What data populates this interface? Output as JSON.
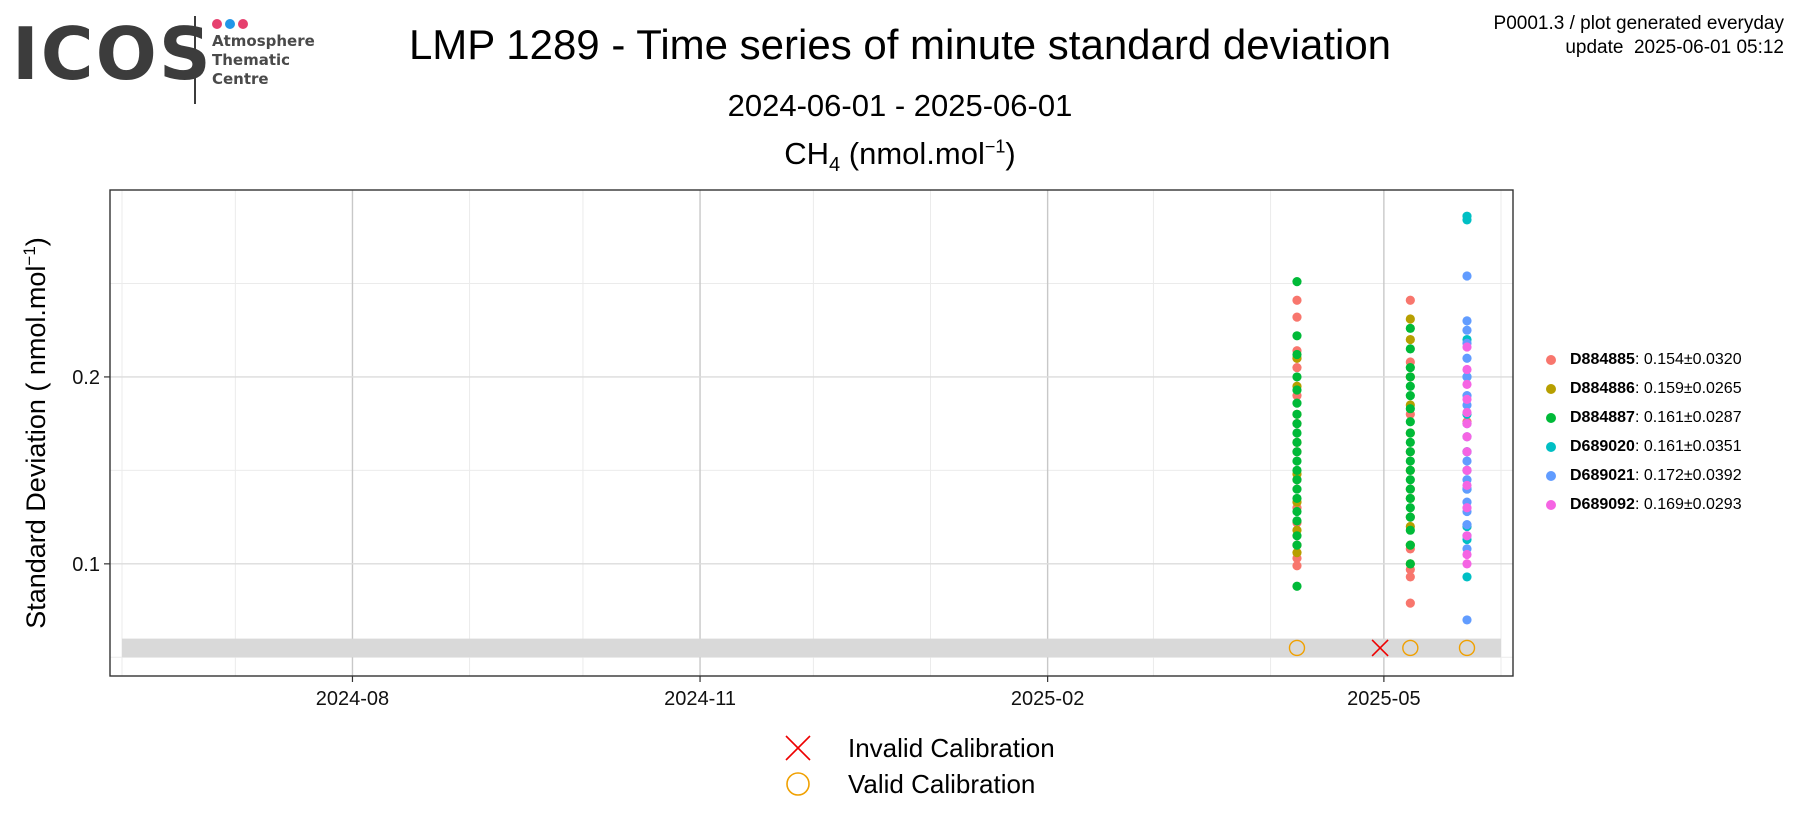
{
  "logo": {
    "wordmark": "ICOS",
    "line1": "Atmosphere",
    "line2": "Thematic",
    "line3": "Centre",
    "dot_colors": [
      "#e6406e",
      "#2196e8",
      "#e6406e"
    ]
  },
  "header": {
    "title": "LMP 1289 - Time series of minute standard deviation",
    "subtitle": "2024-06-01 - 2025-06-01",
    "species_prefix": "CH",
    "species_sub": "4",
    "species_unit": " (nmol.mol",
    "species_sup": "−1",
    "species_close": ")"
  },
  "meta": {
    "line1": "P0001.3 / plot generated everyday",
    "line2": "update  2025-06-01 05:12"
  },
  "chart_data": {
    "type": "scatter",
    "ylabel": "Standard Deviation ( nmol.mol",
    "ylabel_sup": "−1",
    "ylabel_close": ")",
    "xlim": [
      "2024-06-01",
      "2025-06-01"
    ],
    "ylim": [
      0.04,
      0.3
    ],
    "x_ticks": [
      "2024-08-01",
      "2024-11-01",
      "2025-02-01",
      "2025-05-01"
    ],
    "x_tick_labels": [
      "2024-08",
      "2024-11",
      "2025-02",
      "2025-05"
    ],
    "y_ticks": [
      0.1,
      0.2
    ],
    "y_tick_labels": [
      "0.1",
      "0.2"
    ],
    "grid": true,
    "legend_position": "right",
    "series": [
      {
        "name": "D884885",
        "stats": ": 0.154±0.0320",
        "color": "#F8766D",
        "points": [
          {
            "x": "2025-04-08",
            "ys": [
              0.241,
              0.232,
              0.214,
              0.21,
              0.205,
              0.19,
              0.175,
              0.16,
              0.145,
              0.13,
              0.122,
              0.11,
              0.103,
              0.099
            ]
          },
          {
            "x": "2025-05-08",
            "ys": [
              0.241,
              0.208,
              0.2,
              0.18,
              0.16,
              0.14,
              0.125,
              0.108,
              0.097,
              0.093,
              0.079
            ]
          },
          {
            "x": "2025-05-23",
            "ys": [
              0.176,
              0.15,
              0.12
            ]
          }
        ]
      },
      {
        "name": "D884886",
        "stats": ": 0.159±0.0265",
        "color": "#B79F00",
        "points": [
          {
            "x": "2025-04-08",
            "ys": [
              0.21,
              0.195,
              0.18,
              0.165,
              0.148,
              0.133,
              0.118,
              0.106
            ]
          },
          {
            "x": "2025-05-08",
            "ys": [
              0.231,
              0.22,
              0.2,
              0.185,
              0.17,
              0.15,
              0.135,
              0.12,
              0.11,
              0.1
            ]
          }
        ]
      },
      {
        "name": "D884887",
        "stats": ": 0.161±0.0287",
        "color": "#00BA38",
        "points": [
          {
            "x": "2025-04-08",
            "ys": [
              0.251,
              0.222,
              0.212,
              0.2,
              0.193,
              0.186,
              0.18,
              0.175,
              0.17,
              0.165,
              0.16,
              0.155,
              0.15,
              0.145,
              0.14,
              0.135,
              0.128,
              0.123,
              0.115,
              0.11,
              0.088
            ]
          },
          {
            "x": "2025-05-08",
            "ys": [
              0.226,
              0.215,
              0.205,
              0.2,
              0.195,
              0.19,
              0.183,
              0.176,
              0.17,
              0.165,
              0.16,
              0.155,
              0.15,
              0.145,
              0.14,
              0.135,
              0.13,
              0.125,
              0.118,
              0.11,
              0.1
            ]
          }
        ]
      },
      {
        "name": "D689020",
        "stats": ": 0.161±0.0351",
        "color": "#00BFC4",
        "points": [
          {
            "x": "2025-05-23",
            "ys": [
              0.286,
              0.284,
              0.22,
              0.2,
              0.18,
              0.16,
              0.14,
              0.12,
              0.113,
              0.093
            ]
          }
        ]
      },
      {
        "name": "D689021",
        "stats": ": 0.172±0.0392",
        "color": "#619CFF",
        "points": [
          {
            "x": "2025-05-23",
            "ys": [
              0.254,
              0.23,
              0.225,
              0.218,
              0.21,
              0.2,
              0.19,
              0.185,
              0.175,
              0.168,
              0.16,
              0.155,
              0.15,
              0.145,
              0.14,
              0.133,
              0.128,
              0.121,
              0.115,
              0.108,
              0.07
            ]
          }
        ]
      },
      {
        "name": "D689092",
        "stats": ": 0.169±0.0293",
        "color": "#F564E3",
        "points": [
          {
            "x": "2025-05-23",
            "ys": [
              0.216,
              0.204,
              0.196,
              0.188,
              0.181,
              0.175,
              0.168,
              0.16,
              0.15,
              0.142,
              0.13,
              0.115,
              0.105,
              0.1
            ]
          }
        ]
      }
    ],
    "calibrations": [
      {
        "x": "2025-04-08",
        "status": "valid"
      },
      {
        "x": "2025-04-30",
        "status": "invalid"
      },
      {
        "x": "2025-05-08",
        "status": "valid"
      },
      {
        "x": "2025-05-23",
        "status": "valid"
      }
    ],
    "calibration_band": [
      0.05,
      0.06
    ],
    "calibration_legend": {
      "invalid_label": "Invalid Calibration",
      "valid_label": "Valid Calibration",
      "invalid_color": "#EE0000",
      "valid_color": "#F0A000"
    }
  }
}
